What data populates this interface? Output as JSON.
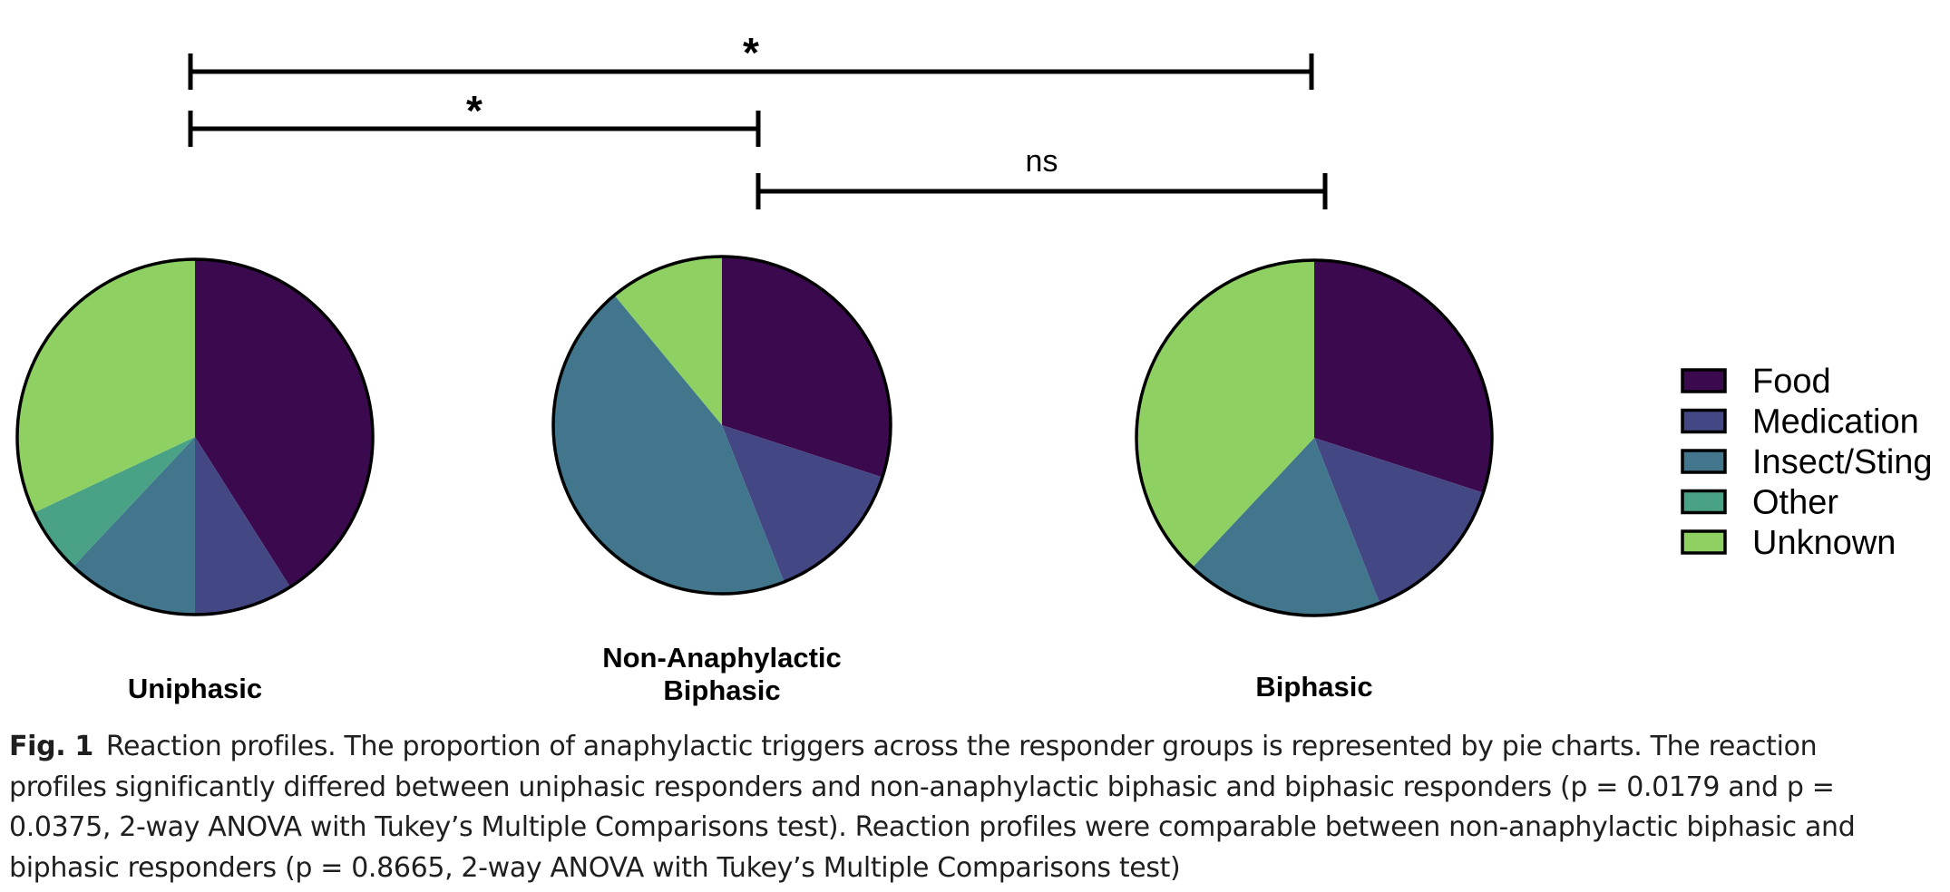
{
  "chart_data": {
    "type": "pie",
    "categories": [
      "Food",
      "Medication",
      "Insect/Sting",
      "Other",
      "Unknown"
    ],
    "colors": [
      "#3b0a4e",
      "#434783",
      "#42768d",
      "#4aa286",
      "#8ed162"
    ],
    "pies": [
      {
        "label": "Uniphasic",
        "values": [
          41,
          9,
          12,
          6,
          32
        ]
      },
      {
        "label": "Non-Anaphylactic\nBiphasic",
        "values": [
          30,
          14,
          45,
          0,
          11
        ]
      },
      {
        "label": "Biphasic",
        "values": [
          30,
          14,
          18,
          0,
          38
        ]
      }
    ],
    "comparisons": [
      {
        "from": "Uniphasic",
        "to": "Biphasic",
        "label": "*"
      },
      {
        "from": "Uniphasic",
        "to": "Non-Anaphylactic Biphasic",
        "label": "*"
      },
      {
        "from": "Non-Anaphylactic Biphasic",
        "to": "Biphasic",
        "label": "ns"
      }
    ],
    "legend_position": "right"
  },
  "caption": {
    "label": "Fig. 1",
    "text": "Reaction profiles. The proportion of anaphylactic triggers across the responder groups is represented by pie charts. The reaction profiles significantly differed between uniphasic responders and non-anaphylactic biphasic and biphasic responders (p = 0.0179 and p = 0.0375, 2-way ANOVA with Tukey’s Multiple Comparisons test). Reaction profiles were comparable between non-anaphylactic biphasic and biphasic responders (p = 0.8665, 2-way ANOVA with Tukey’s Multiple Comparisons test)"
  }
}
